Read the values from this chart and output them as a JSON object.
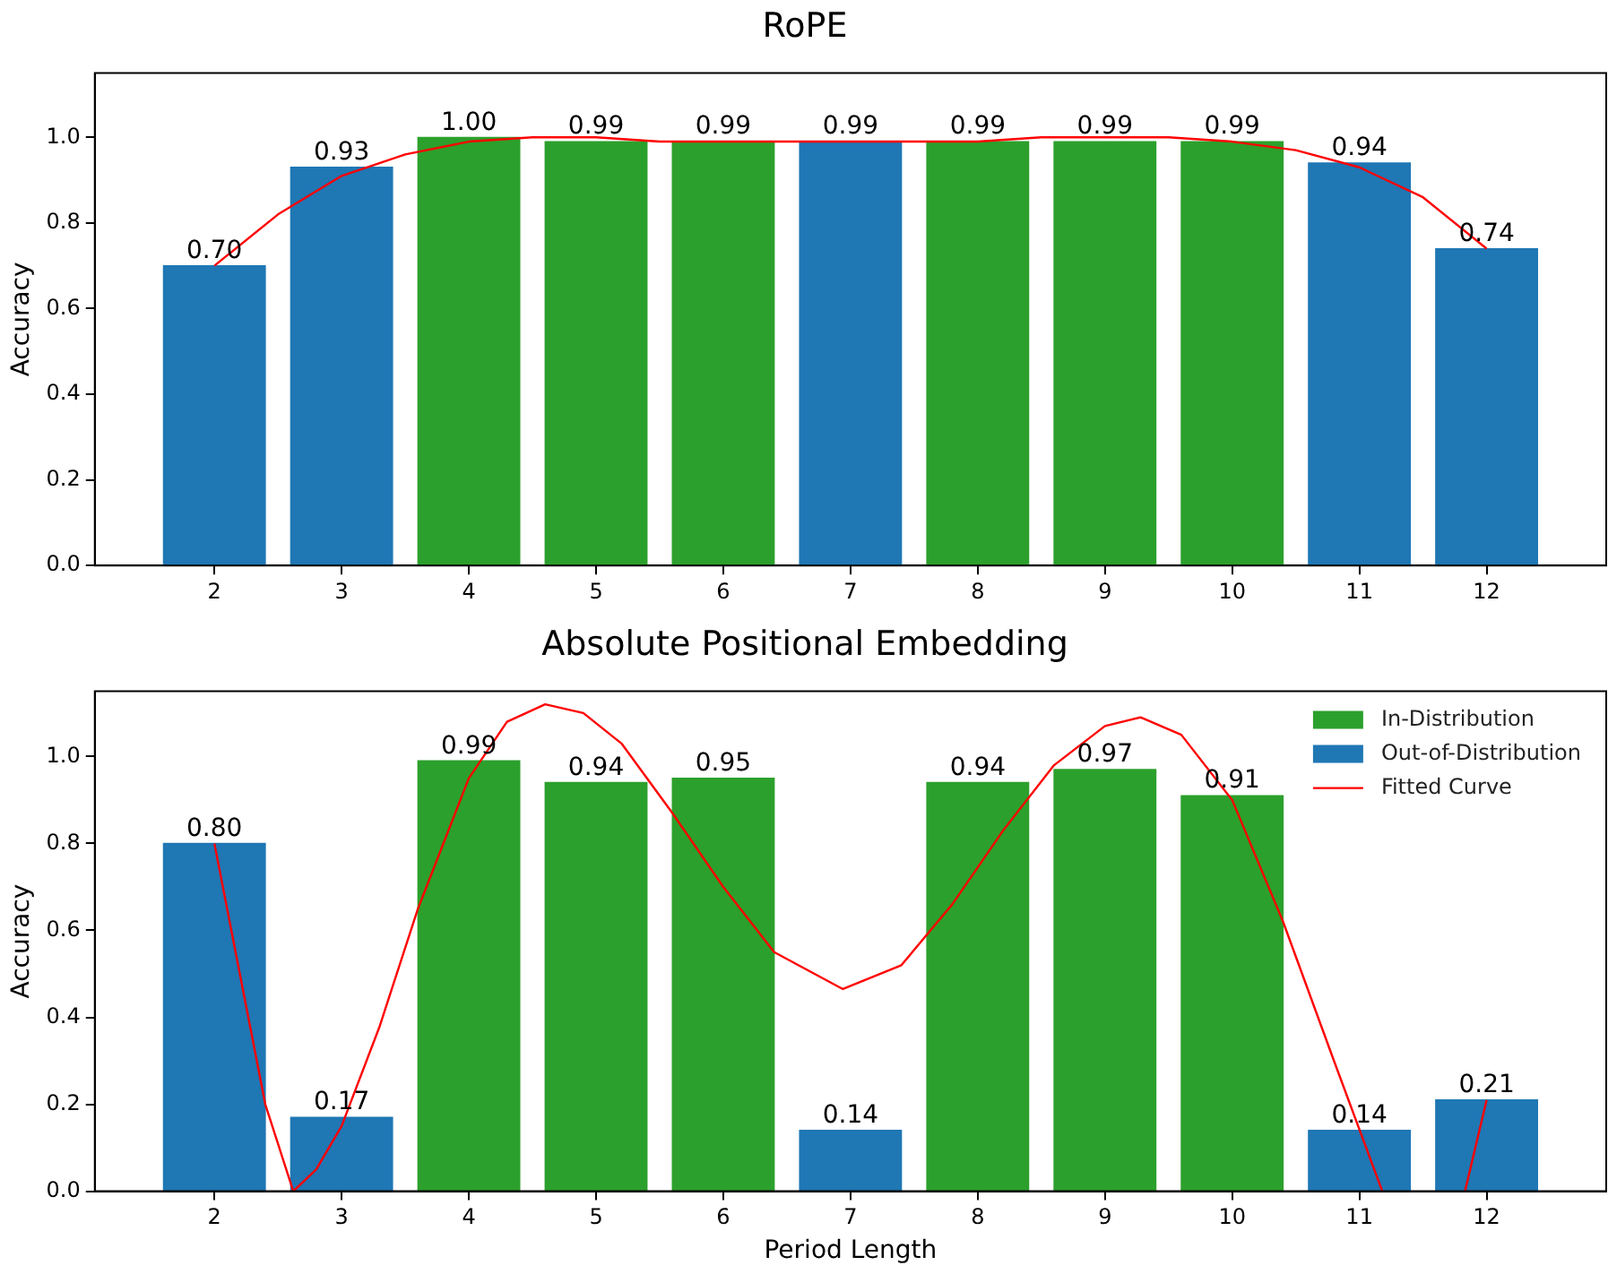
{
  "chart_data": [
    {
      "type": "bar",
      "title": "RoPE",
      "ylabel": "Accuracy",
      "x": [
        2,
        3,
        4,
        5,
        6,
        7,
        8,
        9,
        10,
        11,
        12
      ],
      "xlim": [
        1.06,
        12.94
      ],
      "xticks": [
        2,
        3,
        4,
        5,
        6,
        7,
        8,
        9,
        10,
        11,
        12
      ],
      "ylim": [
        0,
        1.15
      ],
      "yticks": [
        {
          "value": 0,
          "label": "0.0"
        },
        {
          "value": 0.2,
          "label": "0.2"
        },
        {
          "value": 0.4,
          "label": "0.4"
        },
        {
          "value": 0.6,
          "label": "0.6"
        },
        {
          "value": 0.8,
          "label": "0.8"
        },
        {
          "value": 1,
          "label": "1.0"
        }
      ],
      "grid": false,
      "series": [
        {
          "color": "#2ca02c",
          "values": [
            null,
            null,
            1.0,
            0.99,
            0.99,
            null,
            0.99,
            0.99,
            0.99,
            null,
            null
          ],
          "value_labels": [
            null,
            null,
            "1.00",
            "0.99",
            "0.99",
            null,
            "0.99",
            "0.99",
            "0.99",
            null,
            null
          ]
        },
        {
          "color": "#1f77b4",
          "values": [
            0.7,
            0.93,
            null,
            null,
            null,
            0.99,
            null,
            null,
            null,
            0.94,
            0.74
          ],
          "value_labels": [
            "0.70",
            "0.93",
            null,
            null,
            null,
            "0.99",
            null,
            null,
            null,
            "0.94",
            "0.74"
          ]
        },
        {
          "type": "line",
          "color": "#ff0000",
          "x": [
            2,
            2.5,
            3,
            3.5,
            4,
            4.5,
            5,
            5.5,
            6,
            6.5,
            7,
            7.5,
            8,
            8.5,
            9,
            9.5,
            10,
            10.5,
            11,
            11.5,
            12
          ],
          "values": [
            0.7,
            0.82,
            0.91,
            0.96,
            0.99,
            1.0,
            1.0,
            0.99,
            0.99,
            0.99,
            0.99,
            0.99,
            0.99,
            1.0,
            1.0,
            1.0,
            0.99,
            0.97,
            0.93,
            0.86,
            0.74
          ]
        }
      ]
    },
    {
      "type": "bar",
      "title": "Absolute Positional Embedding",
      "xlabel": "Period Length",
      "ylabel": "Accuracy",
      "x": [
        2,
        3,
        4,
        5,
        6,
        7,
        8,
        9,
        10,
        11,
        12
      ],
      "xlim": [
        1.06,
        12.94
      ],
      "xticks": [
        2,
        3,
        4,
        5,
        6,
        7,
        8,
        9,
        10,
        11,
        12
      ],
      "ylim": [
        0,
        1.15
      ],
      "yticks": [
        {
          "value": 0,
          "label": "0.0"
        },
        {
          "value": 0.2,
          "label": "0.2"
        },
        {
          "value": 0.4,
          "label": "0.4"
        },
        {
          "value": 0.6,
          "label": "0.6"
        },
        {
          "value": 0.8,
          "label": "0.8"
        },
        {
          "value": 1,
          "label": "1.0"
        }
      ],
      "grid": false,
      "legend": "top right",
      "series": [
        {
          "name": "In-Distribution",
          "color": "#2ca02c",
          "values": [
            null,
            null,
            0.99,
            0.94,
            0.95,
            null,
            0.94,
            0.97,
            0.91,
            null,
            null
          ],
          "value_labels": [
            null,
            null,
            "0.99",
            "0.94",
            "0.95",
            null,
            "0.94",
            "0.97",
            "0.91",
            null,
            null
          ]
        },
        {
          "name": "Out-of-Distribution",
          "color": "#1f77b4",
          "values": [
            0.8,
            0.17,
            null,
            null,
            null,
            0.14,
            null,
            null,
            null,
            0.14,
            0.21
          ],
          "value_labels": [
            "0.80",
            "0.17",
            null,
            null,
            null,
            "0.14",
            null,
            null,
            null,
            "0.14",
            "0.21"
          ]
        },
        {
          "type": "line",
          "name": "Fitted Curve",
          "color": "#ff0000",
          "x": [
            2,
            2.2,
            2.4,
            2.62,
            2.8,
            3,
            3.3,
            3.6,
            4,
            4.3,
            4.6,
            4.9,
            5.2,
            5.6,
            6,
            6.4,
            6.94,
            7.4,
            7.8,
            8.2,
            8.6,
            9,
            9.28,
            9.6,
            10,
            10.4,
            10.8,
            11.18,
            11.5,
            11.83,
            12
          ],
          "values": [
            0.8,
            0.5,
            0.2,
            0.0,
            0.05,
            0.15,
            0.38,
            0.65,
            0.95,
            1.08,
            1.12,
            1.1,
            1.03,
            0.87,
            0.7,
            0.55,
            0.465,
            0.52,
            0.66,
            0.83,
            0.98,
            1.07,
            1.09,
            1.05,
            0.9,
            0.62,
            0.3,
            0.0,
            null,
            0.0,
            0.21
          ]
        }
      ]
    }
  ]
}
